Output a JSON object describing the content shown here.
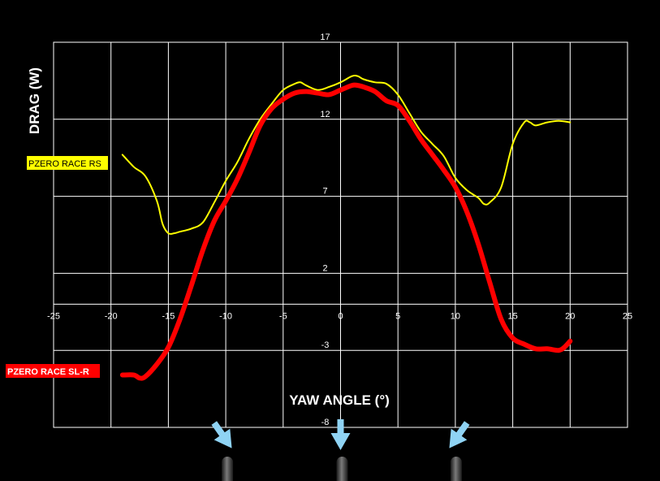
{
  "chart_data": {
    "type": "line",
    "title": "",
    "xlabel": "YAW ANGLE (°)",
    "ylabel": "DRAG (W)",
    "xlim": [
      -25,
      25
    ],
    "ylim": [
      -8,
      17
    ],
    "x_ticks": [
      -25,
      -20,
      -15,
      -10,
      -5,
      0,
      5,
      10,
      15,
      20,
      25
    ],
    "y_ticks": [
      17,
      12,
      7,
      2,
      -3,
      -8
    ],
    "grid": true,
    "series": [
      {
        "name": "PZERO RACE RS",
        "color": "#ffff00",
        "x": [
          -19,
          -18,
          -17,
          -16,
          -15.5,
          -15,
          -14.5,
          -14,
          -13,
          -12,
          -11,
          -10,
          -9,
          -8,
          -7,
          -6,
          -5,
          -4,
          -3.5,
          -3,
          -2,
          -1,
          0,
          1,
          1.5,
          2,
          3,
          4,
          5,
          6,
          7,
          8,
          9,
          10,
          11,
          12,
          12.5,
          13,
          14,
          15,
          16,
          16.5,
          17,
          18,
          19,
          20
        ],
        "y": [
          9.7,
          8.9,
          8.3,
          6.7,
          5.2,
          4.6,
          4.6,
          4.7,
          4.9,
          5.3,
          6.6,
          8.0,
          9.2,
          10.7,
          12.0,
          13.0,
          13.9,
          14.3,
          14.4,
          14.2,
          13.9,
          14.1,
          14.4,
          14.8,
          14.8,
          14.6,
          14.4,
          14.3,
          13.6,
          12.4,
          11.2,
          10.4,
          9.6,
          8.2,
          7.4,
          6.9,
          6.5,
          6.6,
          7.6,
          10.4,
          11.8,
          11.8,
          11.6,
          11.8,
          11.9,
          11.8
        ]
      },
      {
        "name": "PZERO RACE SL-R",
        "color": "#ff0000",
        "x": [
          -19,
          -18,
          -17.5,
          -17,
          -16,
          -15,
          -14,
          -13,
          -12,
          -11,
          -10,
          -9,
          -8,
          -7,
          -6,
          -5,
          -4,
          -3,
          -2,
          -1,
          0,
          1,
          1.5,
          2,
          3,
          4,
          5,
          6,
          7,
          8,
          9,
          10,
          11,
          12,
          13,
          14,
          15,
          16,
          17,
          18,
          19,
          19.5,
          20
        ],
        "y": [
          -4.6,
          -4.6,
          -4.8,
          -4.7,
          -3.9,
          -2.8,
          -1.0,
          1.2,
          3.5,
          5.4,
          6.7,
          8.1,
          9.8,
          11.6,
          12.7,
          13.3,
          13.7,
          13.8,
          13.7,
          13.6,
          13.9,
          14.2,
          14.2,
          14.1,
          13.8,
          13.2,
          12.9,
          11.9,
          10.7,
          9.7,
          8.7,
          7.6,
          6.0,
          3.9,
          1.4,
          -1.0,
          -2.2,
          -2.6,
          -2.9,
          -2.9,
          -3.0,
          -2.8,
          -2.4
        ]
      }
    ]
  },
  "markers": {
    "arrow_color": "#8fd3f4",
    "arrows": [
      {
        "name": "arrow-left",
        "x": -10,
        "direction": "down-right"
      },
      {
        "name": "arrow-center",
        "x": 0,
        "direction": "down"
      },
      {
        "name": "arrow-right",
        "x": 10,
        "direction": "down-left"
      }
    ],
    "posts_color": "#4a4a4a"
  }
}
